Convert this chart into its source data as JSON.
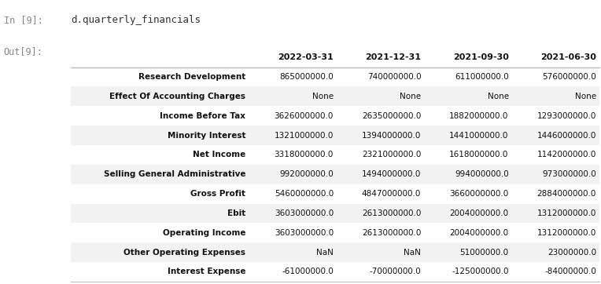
{
  "input_label": "In [9]:",
  "output_label": "Out[9]:",
  "input_code": "d.quarterly_financials",
  "columns": [
    "2022-03-31",
    "2021-12-31",
    "2021-09-30",
    "2021-06-30"
  ],
  "rows": [
    {
      "index": "Research Development",
      "vals": [
        "865000000.0",
        "740000000.0",
        "611000000.0",
        "576000000.0"
      ]
    },
    {
      "index": "Effect Of Accounting Charges",
      "vals": [
        "None",
        "None",
        "None",
        "None"
      ]
    },
    {
      "index": "Income Before Tax",
      "vals": [
        "3626000000.0",
        "2635000000.0",
        "1882000000.0",
        "1293000000.0"
      ]
    },
    {
      "index": "Minority Interest",
      "vals": [
        "1321000000.0",
        "1394000000.0",
        "1441000000.0",
        "1446000000.0"
      ]
    },
    {
      "index": "Net Income",
      "vals": [
        "3318000000.0",
        "2321000000.0",
        "1618000000.0",
        "1142000000.0"
      ]
    },
    {
      "index": "Selling General Administrative",
      "vals": [
        "992000000.0",
        "1494000000.0",
        "994000000.0",
        "973000000.0"
      ]
    },
    {
      "index": "Gross Profit",
      "vals": [
        "5460000000.0",
        "4847000000.0",
        "3660000000.0",
        "2884000000.0"
      ]
    },
    {
      "index": "Ebit",
      "vals": [
        "3603000000.0",
        "2613000000.0",
        "2004000000.0",
        "1312000000.0"
      ]
    },
    {
      "index": "Operating Income",
      "vals": [
        "3603000000.0",
        "2613000000.0",
        "2004000000.0",
        "1312000000.0"
      ]
    },
    {
      "index": "Other Operating Expenses",
      "vals": [
        "NaN",
        "NaN",
        "51000000.0",
        "23000000.0"
      ]
    },
    {
      "index": "Interest Expense",
      "vals": [
        "-61000000.0",
        "-70000000.0",
        "-125000000.0",
        "-84000000.0"
      ]
    }
  ],
  "bg_input": "#f7f7f7",
  "bg_white": "#ffffff",
  "bg_stripe": "#f2f2f2",
  "header_line_color": "#bbbbbb",
  "label_color": "#888888",
  "text_color": "#111111",
  "code_color": "#333333"
}
